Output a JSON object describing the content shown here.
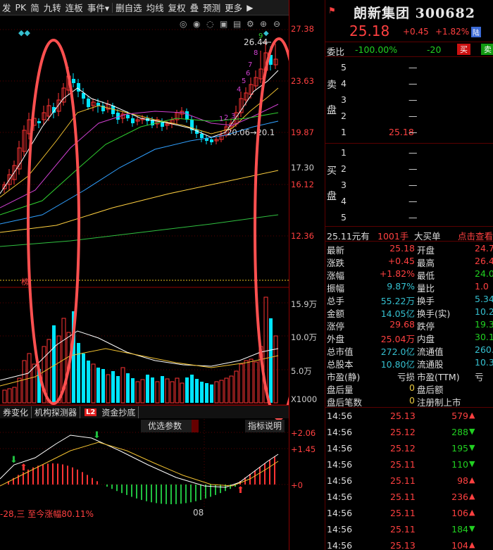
{
  "toolbar": {
    "items": [
      "发",
      "PK",
      "简",
      "九转",
      "连板",
      "事件▾",
      "删自选",
      "均线",
      "复权",
      "叠",
      "预测",
      "更多",
      "▶"
    ]
  },
  "price_axis": {
    "labels": [
      "27.38",
      "23.63",
      "19.87",
      "17.30",
      "16.12",
      "12.36"
    ]
  },
  "volume_axis": {
    "labels": [
      "15.9万",
      "10.0万",
      "5.0万",
      "X1000"
    ]
  },
  "macd_axis": {
    "labels": [
      "+2.06",
      "+1.45",
      "+0"
    ]
  },
  "annotations": {
    "high_label": "26.44",
    "range_label": "20.06→20.1",
    "wave_counts": [
      "9",
      "8",
      "7",
      "6",
      "5",
      "4",
      "3",
      "2",
      "1"
    ],
    "marker_char": "榜"
  },
  "indicator_tabs": {
    "tab1": "券变化",
    "tab2": "机构探测器",
    "l2": "L2",
    "tab3": "资金抄底",
    "opt_param": "优选参数",
    "opt_help": "指标说明"
  },
  "footer": {
    "note": "-28,三 至今涨幅80.11%",
    "date": "08"
  },
  "quote": {
    "flag": "⚑",
    "name": "朗新集团",
    "code": "300682",
    "price": "25.18",
    "change": "+0.45",
    "change_pct": "+1.82%",
    "market": "陆",
    "weibi_label": "委比",
    "weibi_value": "-100.00%",
    "weicha_value": "-20",
    "sell_button": "买",
    "buy_button": "卖"
  },
  "order_book": {
    "sell_side_label": [
      "卖",
      "盘"
    ],
    "buy_side_label": [
      "买",
      "盘"
    ],
    "asks": [
      {
        "level": "5",
        "price": "",
        "vol": "—"
      },
      {
        "level": "4",
        "price": "",
        "vol": "—"
      },
      {
        "level": "3",
        "price": "",
        "vol": "—"
      },
      {
        "level": "2",
        "price": "",
        "vol": "—"
      },
      {
        "level": "1",
        "price": "25.18",
        "vol": "—"
      }
    ],
    "bids": [
      {
        "level": "1",
        "price": "",
        "vol": "—"
      },
      {
        "level": "2",
        "price": "",
        "vol": "—"
      },
      {
        "level": "3",
        "price": "",
        "vol": "—"
      },
      {
        "level": "4",
        "price": "",
        "vol": "—"
      },
      {
        "level": "5",
        "price": "",
        "vol": "—"
      }
    ]
  },
  "last_trade": {
    "price_text": "25.11元有",
    "vol_text": "1001手",
    "label": "大买单",
    "link": "点击查看"
  },
  "stats": [
    {
      "k1": "最新",
      "v1": "25.18",
      "c1": "red",
      "k2": "开盘",
      "v2": "24.7",
      "c2": "red"
    },
    {
      "k1": "涨跌",
      "v1": "+0.45",
      "c1": "red",
      "k2": "最高",
      "v2": "26.4",
      "c2": "red"
    },
    {
      "k1": "涨幅",
      "v1": "+1.82%",
      "c1": "red",
      "k2": "最低",
      "v2": "24.0",
      "c2": "grn"
    },
    {
      "k1": "振幅",
      "v1": "9.87%",
      "c1": "cyan",
      "k2": "量比",
      "v2": "1.0",
      "c2": "red"
    },
    {
      "k1": "总手",
      "v1": "55.22万",
      "c1": "cyan",
      "k2": "换手",
      "v2": "5.34",
      "c2": "cyan"
    },
    {
      "k1": "金额",
      "v1": "14.05亿",
      "c1": "cyan",
      "k2": "换手(实)",
      "v2": "10.22",
      "c2": "cyan"
    },
    {
      "k1": "涨停",
      "v1": "29.68",
      "c1": "red",
      "k2": "跌停",
      "v2": "19.3",
      "c2": "grn"
    },
    {
      "k1": "外盘",
      "v1": "25.04万",
      "c1": "red",
      "k2": "内盘",
      "v2": "30.18",
      "c2": "grn"
    },
    {
      "k1": "总市值",
      "v1": "272.0亿",
      "c1": "cyan",
      "k2": "流通值",
      "v2": "260.4",
      "c2": "cyan"
    },
    {
      "k1": "总股本",
      "v1": "10.80亿",
      "c1": "cyan",
      "k2": "流通股",
      "v2": "10.34",
      "c2": "cyan"
    },
    {
      "k1": "市盈(静)",
      "v1": "亏损",
      "c1": "wht",
      "k2": "市盈(TTM)",
      "v2": "亏",
      "c2": "wht"
    },
    {
      "k1": "盘后量",
      "v1": "0",
      "c1": "yel",
      "k2": "盘后额",
      "v2": "",
      "c2": "wht"
    },
    {
      "k1": "盘后笔数",
      "v1": "0",
      "c1": "yel",
      "k2": "注册制上市",
      "v2": "",
      "c2": "wht"
    }
  ],
  "ticks": [
    {
      "time": "14:56",
      "price": "25.13",
      "vol": "579",
      "dir": "up"
    },
    {
      "time": "14:56",
      "price": "25.12",
      "vol": "288",
      "dir": "down"
    },
    {
      "time": "14:56",
      "price": "25.12",
      "vol": "195",
      "dir": "down"
    },
    {
      "time": "14:56",
      "price": "25.11",
      "vol": "110",
      "dir": "down"
    },
    {
      "time": "14:56",
      "price": "25.11",
      "vol": "98",
      "dir": "up"
    },
    {
      "time": "14:56",
      "price": "25.11",
      "vol": "236",
      "dir": "up"
    },
    {
      "time": "14:56",
      "price": "25.11",
      "vol": "106",
      "dir": "up"
    },
    {
      "time": "14:56",
      "price": "25.11",
      "vol": "184",
      "dir": "down"
    },
    {
      "time": "14:56",
      "price": "25.13",
      "vol": "104",
      "dir": "up"
    }
  ],
  "colors": {
    "up": "#ff3333",
    "down": "#00e5ff",
    "ma5": "#ffffff",
    "ma10": "#f0c030",
    "ma20": "#d040d0",
    "ma30": "#30d030",
    "ma60": "#30a0ff",
    "ma120": "#ffd040",
    "ma250": "#30c040",
    "highlight_ellipse": "#ff5050"
  }
}
